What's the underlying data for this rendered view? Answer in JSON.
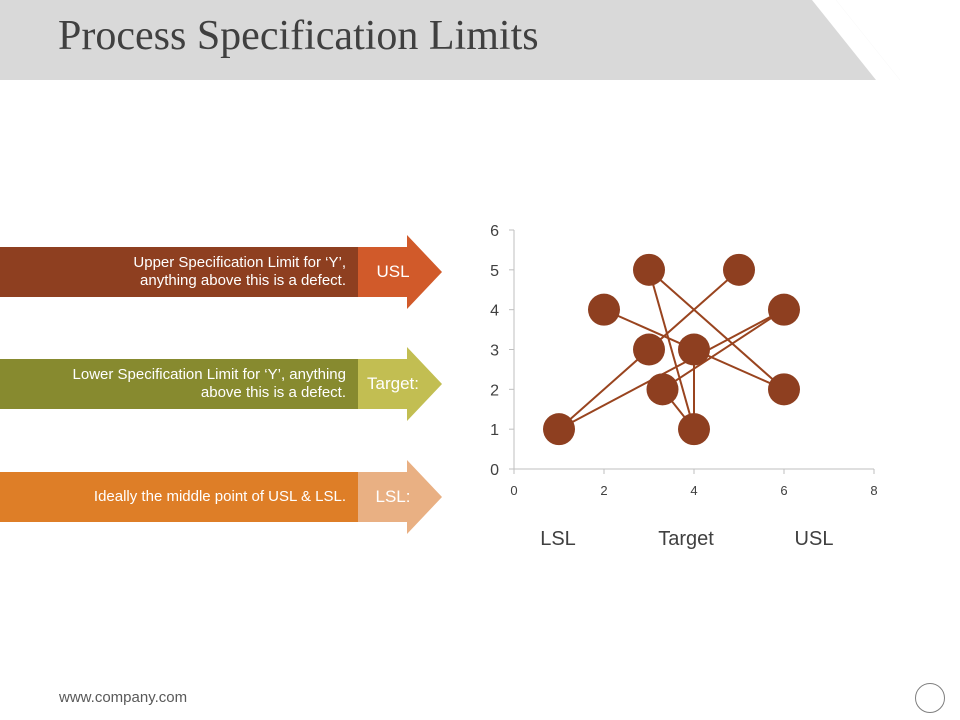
{
  "header": {
    "title": "Process Specification Limits"
  },
  "bands": [
    {
      "text_line1": "Upper Specification Limit for ‘Y’,",
      "text_line2": "anything above this is a defect.",
      "arrow_label": "USL",
      "bar_color": "#8e3f20",
      "arrow_color": "#d15a2a"
    },
    {
      "text_line1": "Lower Specification Limit for ‘Y’, anything",
      "text_line2": "above this is a defect.",
      "arrow_label": "Target:",
      "bar_color": "#878a2f",
      "arrow_color": "#c2be52"
    },
    {
      "text_line1": "Ideally the middle point of USL & LSL.",
      "text_line2": "",
      "arrow_label": "LSL:",
      "bar_color": "#de7e27",
      "arrow_color": "#e9b083"
    }
  ],
  "chart_data": {
    "type": "scatter",
    "x_ticks": [
      0,
      2,
      4,
      6,
      8
    ],
    "y_ticks": [
      0,
      1,
      2,
      3,
      4,
      5,
      6
    ],
    "xlim": [
      0,
      8
    ],
    "ylim": [
      0,
      6
    ],
    "points": [
      {
        "x": 1,
        "y": 1
      },
      {
        "x": 2,
        "y": 4
      },
      {
        "x": 3,
        "y": 5
      },
      {
        "x": 3,
        "y": 3
      },
      {
        "x": 3.3,
        "y": 2
      },
      {
        "x": 4,
        "y": 3
      },
      {
        "x": 4,
        "y": 1
      },
      {
        "x": 5,
        "y": 5
      },
      {
        "x": 6,
        "y": 4
      },
      {
        "x": 6,
        "y": 2
      }
    ],
    "connections": [
      [
        0,
        7
      ],
      [
        0,
        8
      ],
      [
        1,
        9
      ],
      [
        2,
        9
      ],
      [
        2,
        6
      ],
      [
        4,
        8
      ],
      [
        4,
        6
      ],
      [
        5,
        6
      ]
    ],
    "point_color": "#8e3f20",
    "line_color": "#99441f",
    "category_labels": [
      "LSL",
      "Target",
      "USL"
    ]
  },
  "footer": {
    "url": "www.company.com"
  }
}
